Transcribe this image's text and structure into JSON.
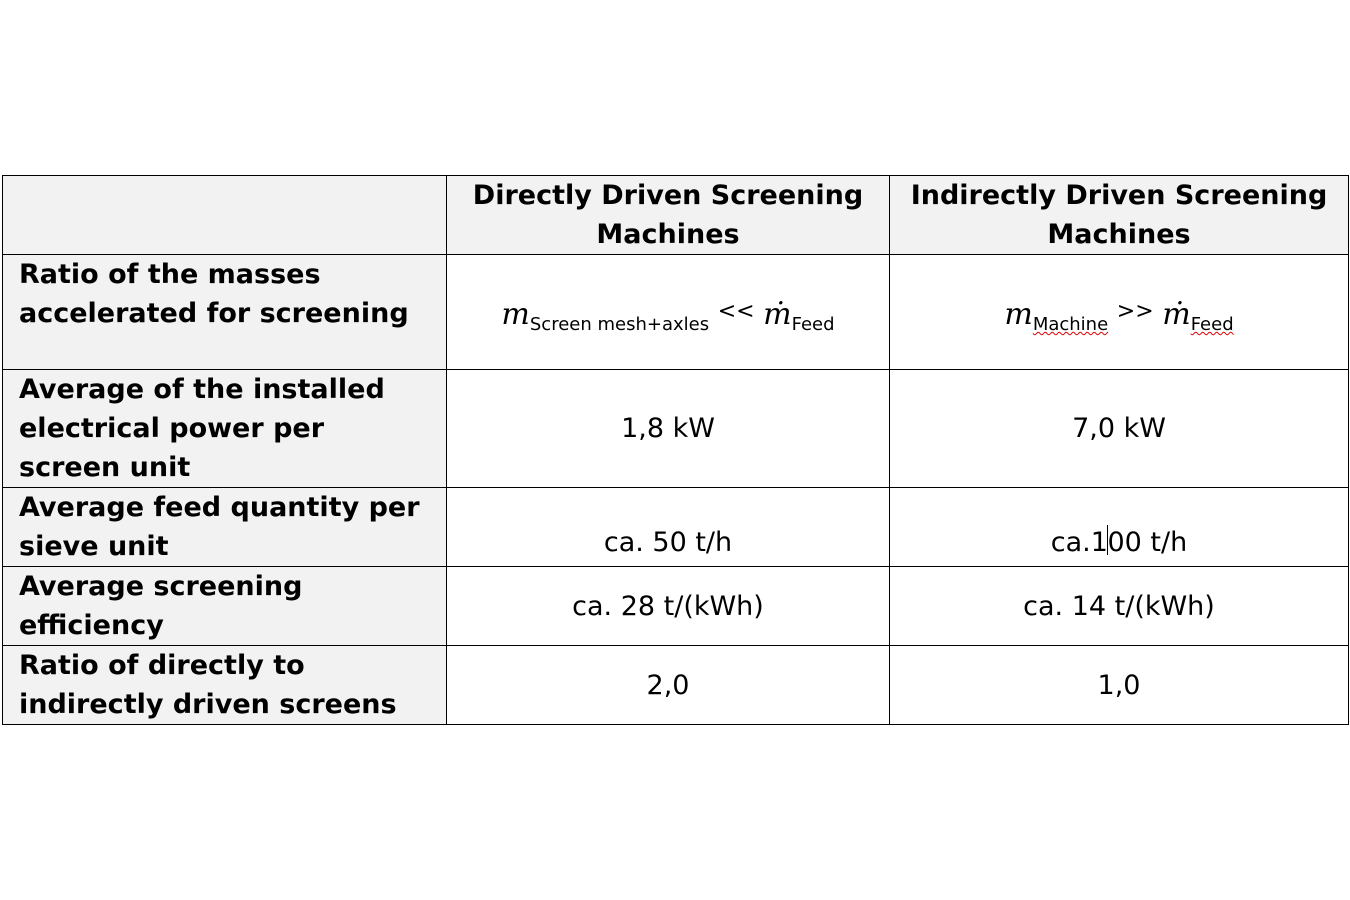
{
  "table": {
    "headers": [
      "",
      "Directly Driven Screening Machines",
      "Indirectly Driven Screening Machines"
    ],
    "rows": [
      {
        "label": "Ratio of the masses accelerated for screening",
        "direct": {
          "symbol": "m",
          "sub": "Screen mesh+axles",
          "op": "<<",
          "symbol2": "ṁ",
          "sub2": "Feed"
        },
        "indirect": {
          "symbol": "m",
          "sub": "Machine",
          "op": ">>",
          "symbol2": "ṁ",
          "sub2": "Feed"
        }
      },
      {
        "label": "Average of the installed electrical power per screen unit",
        "direct": "1,8 kW",
        "indirect": "7,0 kW"
      },
      {
        "label": "Average feed quantity per sieve unit",
        "direct": "ca. 50 t/h",
        "indirect_a": "ca.1",
        "indirect_b": "00 t/h"
      },
      {
        "label": "Average screening efficiency",
        "direct": "ca. 28 t/(kWh)",
        "indirect": "ca. 14 t/(kWh)"
      },
      {
        "label": "Ratio of directly to indirectly driven screens",
        "direct": "2,0",
        "indirect": "1,0"
      }
    ]
  }
}
